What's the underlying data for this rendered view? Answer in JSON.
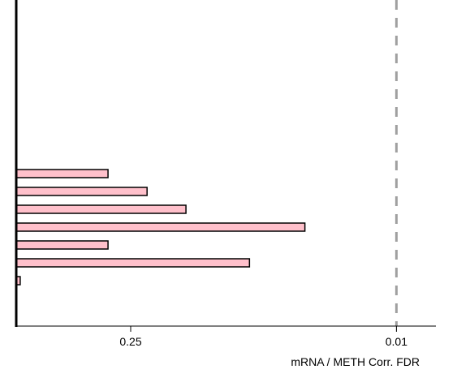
{
  "chart_data": {
    "type": "barh",
    "x_label": "mRNA / METH Corr. FDR",
    "categories": [
      null,
      null,
      null,
      null,
      null,
      null,
      null
    ],
    "values": [
      0.329,
      0.205,
      0.128,
      0.0303,
      0.329,
      0.0593,
      0.953
    ],
    "color": "#ffc0cb",
    "x_log": true,
    "xlim": [
      1,
      0.0062
    ],
    "xticks": [
      0.25,
      0.01
    ],
    "threshold": 0.01
  }
}
